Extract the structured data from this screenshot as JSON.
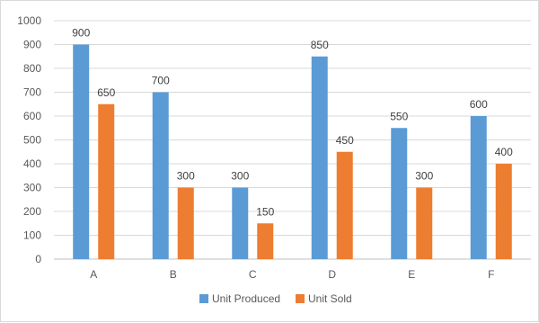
{
  "chart_data": {
    "type": "bar",
    "title": "",
    "xlabel": "",
    "ylabel": "",
    "categories": [
      "A",
      "B",
      "C",
      "D",
      "E",
      "F"
    ],
    "series": [
      {
        "name": "Unit Produced",
        "color": "#5b9bd5",
        "values": [
          900,
          700,
          300,
          850,
          550,
          600
        ]
      },
      {
        "name": "Unit Sold",
        "color": "#ed7d31",
        "values": [
          650,
          300,
          150,
          450,
          300,
          400
        ]
      }
    ],
    "ylim": [
      0,
      1000
    ],
    "yticks": [
      0,
      100,
      200,
      300,
      400,
      500,
      600,
      700,
      800,
      900,
      1000
    ],
    "grid": true,
    "gridColor": "#d9d9d9",
    "legend": "bottom",
    "data_labels": true
  }
}
